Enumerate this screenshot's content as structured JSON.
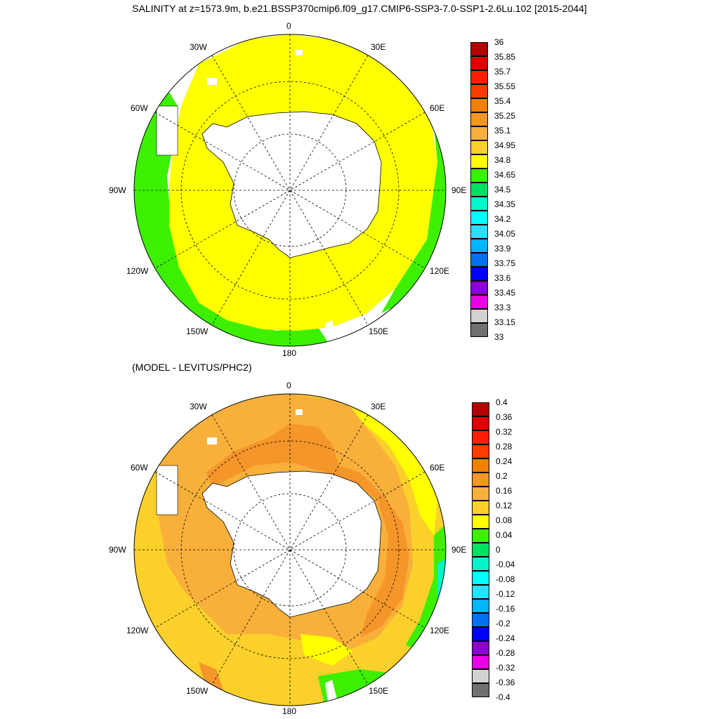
{
  "header": {
    "title": "SALINITY at z=1573.9m, b.e21.BSSP370cmip6.f09_g17.CMIP6-SSP3-7.0-SSP1-2.6Lu.102 [2015-2044]"
  },
  "bottom": {
    "subtitle": "(MODEL - LEVITUS/PHC2)"
  },
  "maps": {
    "projection": "south polar stereographic",
    "longitude_labels": [
      "0",
      "30E",
      "60E",
      "90E",
      "120E",
      "150E",
      "180",
      "150W",
      "120W",
      "90W",
      "60W",
      "30W"
    ]
  },
  "colorbars": {
    "top": {
      "labels": [
        "36",
        "35.85",
        "35.7",
        "35.55",
        "35.4",
        "35.25",
        "35.1",
        "34.95",
        "34.8",
        "34.65",
        "34.5",
        "34.35",
        "34.2",
        "34.05",
        "33.9",
        "33.75",
        "33.6",
        "33.45",
        "33.3",
        "33.15",
        "33"
      ],
      "colors": [
        "#b40000",
        "#dc0000",
        "#ff1e00",
        "#ff3c00",
        "#f08000",
        "#f5962a",
        "#f8b03a",
        "#fbd02a",
        "#ffff00",
        "#3cf000",
        "#00e060",
        "#00f5c8",
        "#00ffff",
        "#28e0ff",
        "#00b4ff",
        "#0070f0",
        "#0000ff",
        "#8c00d2",
        "#e600e6",
        "#d2d2d2",
        "#707070"
      ]
    },
    "bottom": {
      "labels": [
        "0.4",
        "0.36",
        "0.32",
        "0.28",
        "0.24",
        "0.2",
        "0.16",
        "0.12",
        "0.08",
        "0.04",
        "0",
        "-0.04",
        "-0.08",
        "-0.12",
        "-0.16",
        "-0.2",
        "-0.24",
        "-0.28",
        "-0.32",
        "-0.36",
        "-0.4"
      ],
      "colors": [
        "#b40000",
        "#dc0000",
        "#ff1e00",
        "#ff3c00",
        "#f08000",
        "#f5962a",
        "#f8b03a",
        "#fbd02a",
        "#ffff00",
        "#3cf000",
        "#00e060",
        "#00f5c8",
        "#00ffff",
        "#28e0ff",
        "#00b4ff",
        "#0070f0",
        "#0000ff",
        "#8c00d2",
        "#e600e6",
        "#d2d2d2",
        "#707070"
      ]
    }
  }
}
